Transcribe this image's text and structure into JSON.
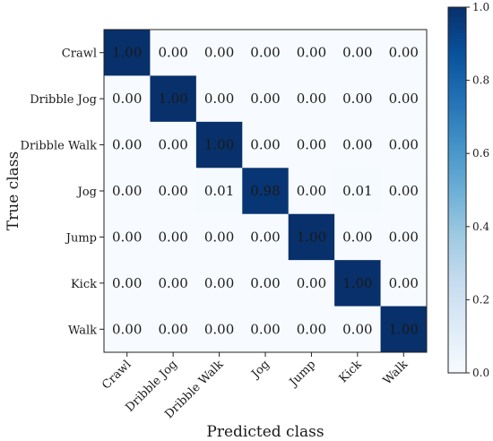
{
  "chart_data": {
    "type": "heatmap",
    "title": "",
    "xlabel": "Predicted class",
    "ylabel": "True class",
    "x_categories": [
      "Crawl",
      "Dribble Jog",
      "Dribble Walk",
      "Jog",
      "Jump",
      "Kick",
      "Walk"
    ],
    "y_categories": [
      "Crawl",
      "Dribble Jog",
      "Dribble Walk",
      "Jog",
      "Jump",
      "Kick",
      "Walk"
    ],
    "values": [
      [
        1.0,
        0.0,
        0.0,
        0.0,
        0.0,
        0.0,
        0.0
      ],
      [
        0.0,
        1.0,
        0.0,
        0.0,
        0.0,
        0.0,
        0.0
      ],
      [
        0.0,
        0.0,
        1.0,
        0.0,
        0.0,
        0.0,
        0.0
      ],
      [
        0.0,
        0.0,
        0.01,
        0.98,
        0.0,
        0.01,
        0.0
      ],
      [
        0.0,
        0.0,
        0.0,
        0.0,
        1.0,
        0.0,
        0.0
      ],
      [
        0.0,
        0.0,
        0.0,
        0.0,
        0.0,
        1.0,
        0.0
      ],
      [
        0.0,
        0.0,
        0.0,
        0.0,
        0.0,
        0.0,
        1.0
      ]
    ],
    "value_format": "2 decimals",
    "colormap": "Blues",
    "colors": {
      "low": "#f7fbff",
      "high": "#08306b",
      "text_dark": "#1a1a1a",
      "text_light": "#ffffff"
    },
    "colorbar": {
      "range": [
        0.0,
        1.0
      ],
      "ticks": [
        "0.0",
        "0.2",
        "0.4",
        "0.6",
        "0.8",
        "1.0"
      ]
    },
    "grid": false
  }
}
